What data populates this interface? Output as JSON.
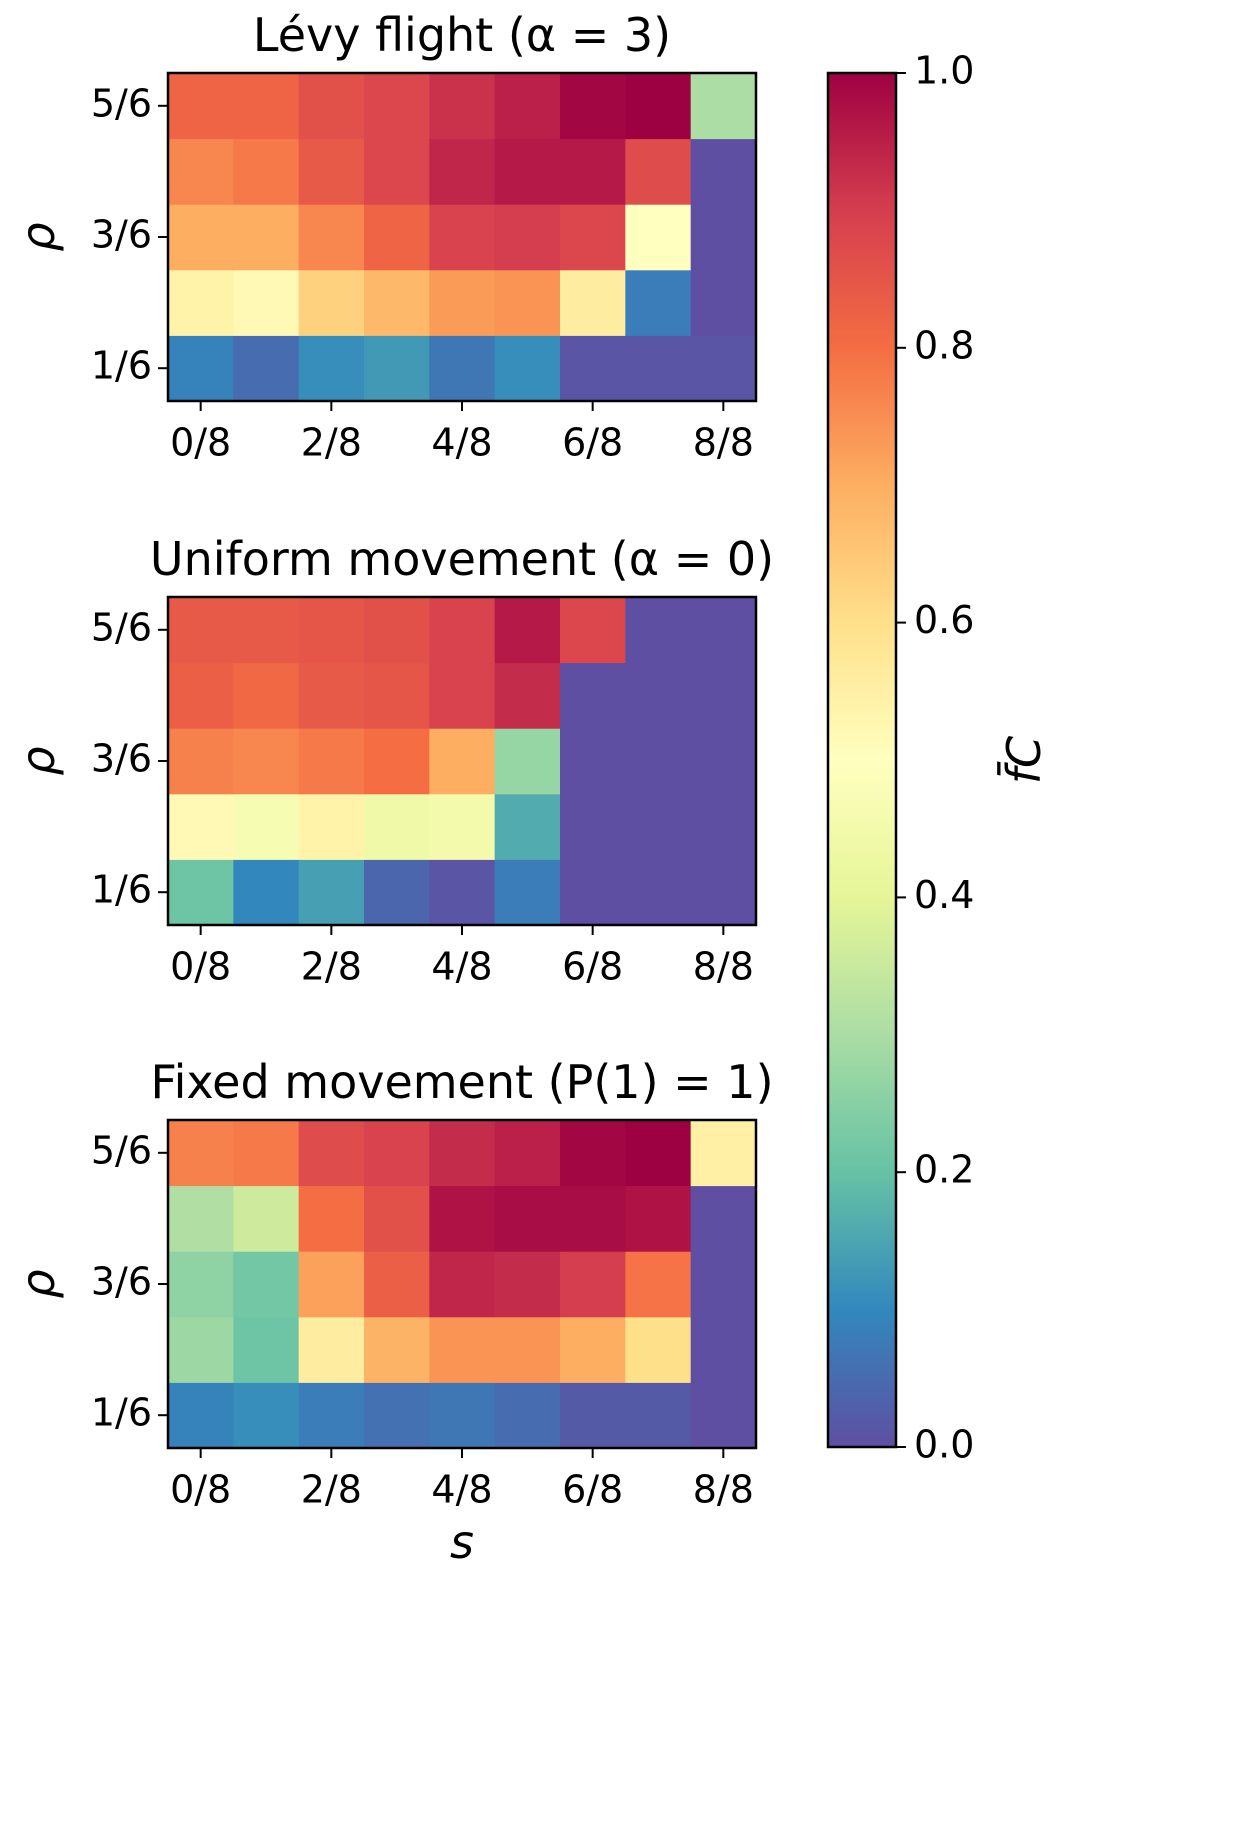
{
  "chart_data": [
    {
      "type": "heatmap",
      "title": "Lévy flight (α = 3)",
      "y_label": "ρ",
      "x_categories": [
        "0/8",
        null,
        "2/8",
        null,
        "4/8",
        null,
        "6/8",
        null,
        "8/8"
      ],
      "y_categories": [
        "1/6",
        null,
        "3/6",
        null,
        "5/6"
      ],
      "z": [
        [
          0.09,
          0.05,
          0.11,
          0.13,
          0.07,
          0.11,
          0.01,
          0.01,
          0.01
        ],
        [
          0.54,
          0.52,
          0.63,
          0.68,
          0.73,
          0.74,
          0.56,
          0.08,
          0.0
        ],
        [
          0.7,
          0.7,
          0.76,
          0.82,
          0.89,
          0.9,
          0.88,
          0.5,
          0.0
        ],
        [
          0.76,
          0.78,
          0.84,
          0.88,
          0.94,
          0.96,
          0.96,
          0.87,
          0.0
        ],
        [
          0.82,
          0.82,
          0.86,
          0.88,
          0.92,
          0.95,
          0.99,
          1.0,
          0.3
        ]
      ]
    },
    {
      "type": "heatmap",
      "title": "Uniform movement (α = 0)",
      "y_label": "ρ",
      "x_categories": [
        "0/8",
        null,
        "2/8",
        null,
        "4/8",
        null,
        "6/8",
        null,
        "8/8"
      ],
      "y_categories": [
        "1/6",
        null,
        "3/6",
        null,
        "5/6"
      ],
      "z": [
        [
          0.21,
          0.1,
          0.14,
          0.04,
          0.01,
          0.08,
          0.0,
          0.0,
          0.0
        ],
        [
          0.52,
          0.47,
          0.54,
          0.44,
          0.45,
          0.16,
          0.0,
          0.0,
          0.0
        ],
        [
          0.77,
          0.76,
          0.78,
          0.8,
          0.7,
          0.27,
          0.0,
          0.0,
          0.0
        ],
        [
          0.83,
          0.81,
          0.84,
          0.85,
          0.89,
          0.93,
          0.0,
          0.0,
          0.0
        ],
        [
          0.84,
          0.84,
          0.85,
          0.86,
          0.89,
          0.96,
          0.88,
          0.0,
          0.0
        ]
      ]
    },
    {
      "type": "heatmap",
      "title": "Fixed movement (P(1) = 1)",
      "y_label": "ρ",
      "x_label": "s",
      "x_categories": [
        "0/8",
        null,
        "2/8",
        null,
        "4/8",
        null,
        "6/8",
        null,
        "8/8"
      ],
      "y_categories": [
        "1/6",
        null,
        "3/6",
        null,
        "5/6"
      ],
      "z": [
        [
          0.09,
          0.11,
          0.08,
          0.06,
          0.07,
          0.05,
          0.02,
          0.02,
          0.0
        ],
        [
          0.28,
          0.21,
          0.56,
          0.69,
          0.74,
          0.74,
          0.7,
          0.6,
          0.0
        ],
        [
          0.26,
          0.22,
          0.72,
          0.83,
          0.94,
          0.93,
          0.9,
          0.79,
          0.0
        ],
        [
          0.31,
          0.36,
          0.8,
          0.86,
          0.97,
          0.98,
          0.98,
          0.97,
          0.0
        ],
        [
          0.77,
          0.78,
          0.87,
          0.89,
          0.93,
          0.95,
          0.99,
          1.0,
          0.55
        ]
      ]
    },
    {
      "type": "colorbar",
      "label": "f̄C",
      "zlim": [
        0,
        1
      ],
      "zticks": [
        {
          "value": 0,
          "label": "0.0"
        },
        {
          "value": 0.2,
          "label": "0.2"
        },
        {
          "value": 0.4,
          "label": "0.4"
        },
        {
          "value": 0.6,
          "label": "0.6"
        },
        {
          "value": 0.8,
          "label": "0.8"
        },
        {
          "value": 1,
          "label": "1.0"
        }
      ],
      "colorscale": [
        "#5e4fa2",
        "#3288bd",
        "#66c2a5",
        "#abdda4",
        "#e6f598",
        "#ffffbf",
        "#fee08b",
        "#fdae61",
        "#f46d43",
        "#d53e4f",
        "#9e0142"
      ]
    }
  ]
}
